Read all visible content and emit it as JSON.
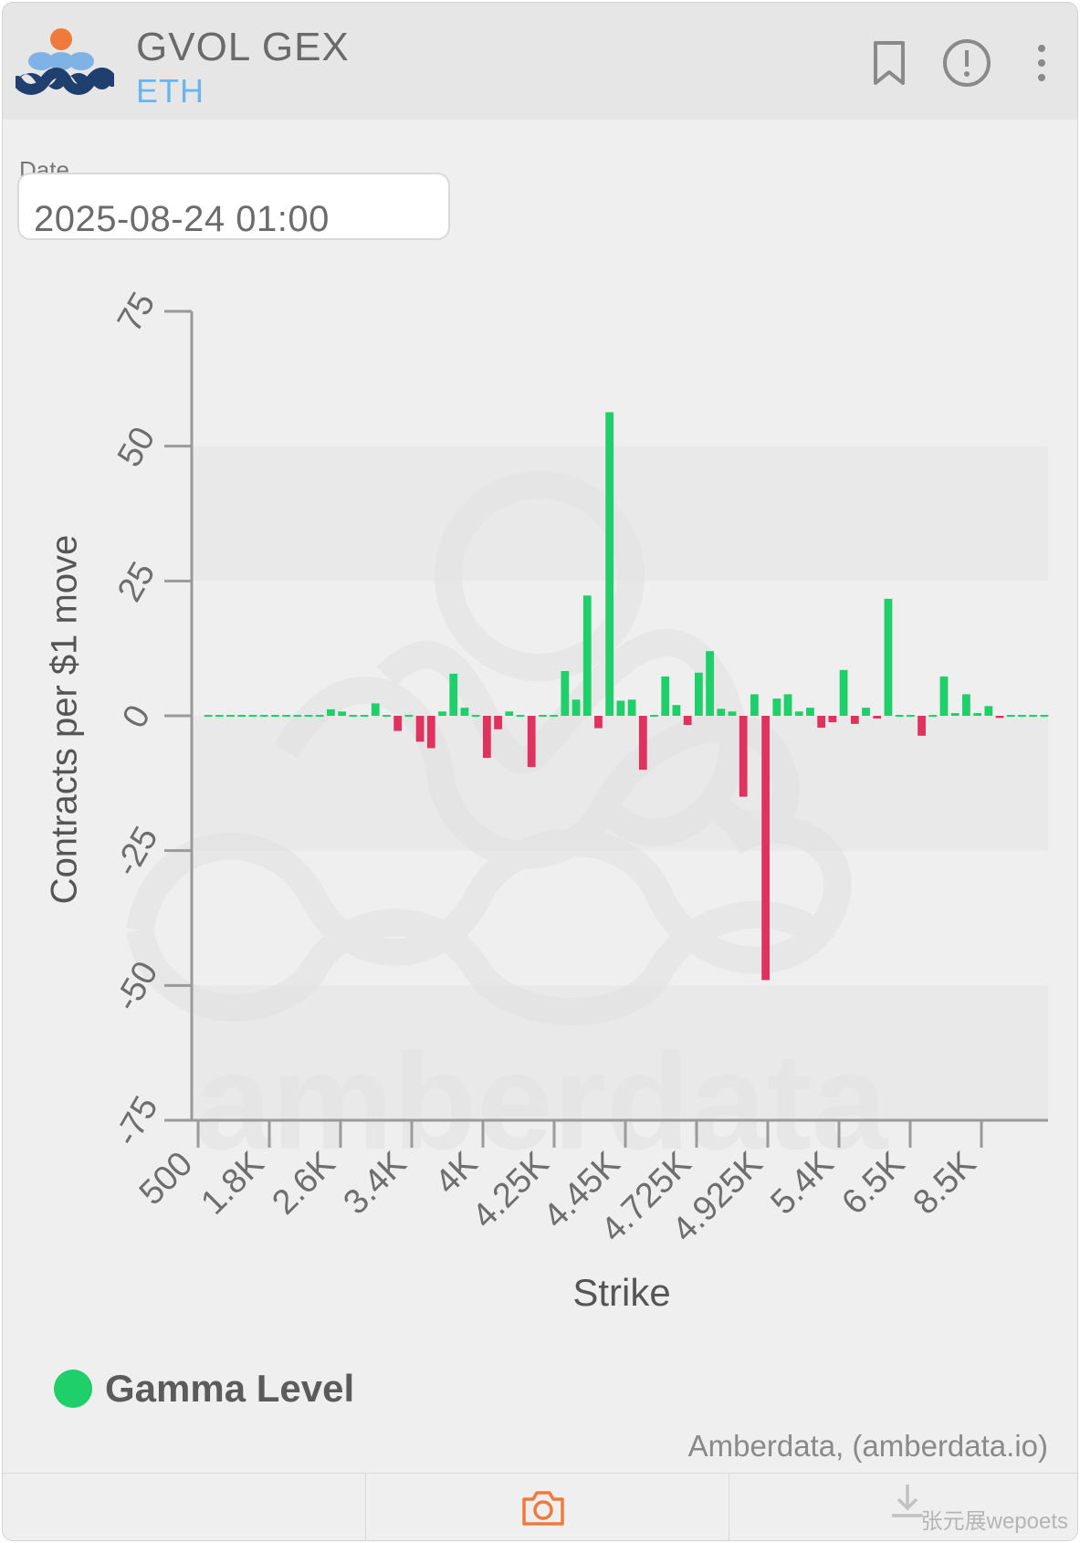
{
  "header": {
    "title": "GVOL GEX",
    "subtitle": "ETH",
    "icons": [
      "bookmark-icon",
      "info-icon",
      "more-vertical-icon"
    ]
  },
  "date_field": {
    "label": "Date",
    "value": "2025-08-24 01:00"
  },
  "chart_data": {
    "type": "bar",
    "xlabel": "Strike",
    "ylabel": "Contracts per $1 move",
    "ylim": [
      -75,
      75
    ],
    "yticks": [
      -75,
      -50,
      -25,
      0,
      25,
      50,
      75
    ],
    "xtick_labels": [
      "500",
      "1.8K",
      "2.6K",
      "3.4K",
      "4K",
      "4.25K",
      "4.45K",
      "4.725K",
      "4.925K",
      "5.4K",
      "6.5K",
      "8.5K"
    ],
    "grid_bands": true,
    "positive_color": "#1fcf6a",
    "negative_color": "#e0325f",
    "series": [
      {
        "name": "Gamma Level",
        "values": [
          0.2,
          0,
          0.2,
          0.3,
          0.3,
          0.3,
          0.3,
          0.3,
          0.2,
          0,
          0,
          1.2,
          0.8,
          0.3,
          0.3,
          2.3,
          0.2,
          -2.8,
          0.3,
          -4.8,
          -6.0,
          0.8,
          7.8,
          1.5,
          0.3,
          -7.8,
          -2.5,
          0.8,
          0.3,
          -9.5,
          0.3,
          0.3,
          8.3,
          3.0,
          22.3,
          -2.3,
          56.3,
          2.8,
          3.0,
          -10.0,
          0.3,
          7.3,
          2.0,
          -1.7,
          8.0,
          12.0,
          1.3,
          0.8,
          -15.0,
          4.0,
          -49.0,
          3.2,
          4.0,
          0.8,
          1.5,
          -2.2,
          -1.2,
          8.5,
          -1.5,
          1.5,
          -0.5,
          21.7,
          0.2,
          0.2,
          -3.7,
          0.3,
          7.3,
          0.5,
          4.0,
          0.5,
          1.8,
          -0.4,
          0.2,
          0.2,
          0.2,
          0.2
        ]
      }
    ]
  },
  "legend": {
    "label": "Gamma Level",
    "color": "#1fcf6a"
  },
  "credit": "Amberdata, (amberdata.io)",
  "watermark": "amberdata",
  "footer": {
    "icons": [
      "camera-icon",
      "download-icon"
    ],
    "watermark_text": "张元展wepoets"
  },
  "colors": {
    "accent_orange": "#f07a3c",
    "subtitle_blue": "#6ab4ef",
    "logo_navy": "#1f3f6e",
    "logo_light_blue": "#7fb3e6"
  }
}
